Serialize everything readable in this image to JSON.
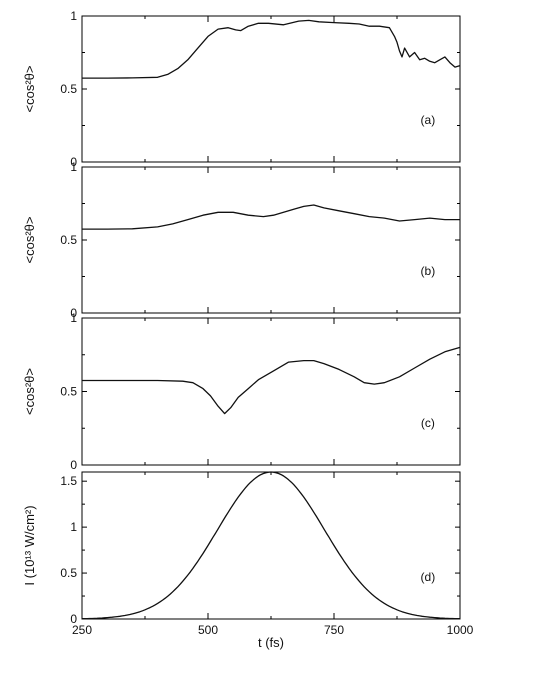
{
  "chart_data": [
    {
      "type": "line",
      "panel_label": "(a)",
      "ylabel": "<cos²θ>",
      "xlim": [
        250,
        1000
      ],
      "ylim": [
        0,
        1
      ],
      "ytick_labels": [
        "0",
        "0.5",
        "1"
      ],
      "ytick_values": [
        0,
        0.5,
        1
      ],
      "grid": false,
      "series": [
        {
          "x": [
            250,
            300,
            350,
            400,
            420,
            440,
            460,
            480,
            500,
            520,
            540,
            555,
            565,
            580,
            600,
            620,
            650,
            680,
            700,
            720,
            750,
            780,
            800,
            820,
            840,
            860,
            870,
            875,
            880,
            885,
            890,
            900,
            910,
            920,
            930,
            940,
            950,
            960,
            970,
            980,
            990,
            1000
          ],
          "y": [
            0.575,
            0.575,
            0.576,
            0.58,
            0.6,
            0.64,
            0.7,
            0.78,
            0.86,
            0.91,
            0.92,
            0.905,
            0.9,
            0.93,
            0.95,
            0.95,
            0.94,
            0.965,
            0.97,
            0.96,
            0.955,
            0.95,
            0.945,
            0.93,
            0.93,
            0.92,
            0.86,
            0.82,
            0.76,
            0.72,
            0.78,
            0.72,
            0.75,
            0.7,
            0.71,
            0.69,
            0.68,
            0.7,
            0.72,
            0.68,
            0.65,
            0.66
          ]
        }
      ]
    },
    {
      "type": "line",
      "panel_label": "(b)",
      "ylabel": "<cos²θ>",
      "xlim": [
        250,
        1000
      ],
      "ylim": [
        0,
        1
      ],
      "ytick_labels": [
        "0",
        "0.5",
        "1"
      ],
      "ytick_values": [
        0,
        0.5,
        1
      ],
      "grid": false,
      "series": [
        {
          "x": [
            250,
            300,
            350,
            400,
            430,
            460,
            490,
            520,
            550,
            580,
            610,
            630,
            650,
            670,
            690,
            710,
            730,
            760,
            790,
            820,
            850,
            880,
            910,
            940,
            970,
            1000
          ],
          "y": [
            0.575,
            0.575,
            0.577,
            0.59,
            0.61,
            0.64,
            0.67,
            0.69,
            0.69,
            0.67,
            0.66,
            0.67,
            0.69,
            0.71,
            0.73,
            0.74,
            0.72,
            0.7,
            0.68,
            0.66,
            0.65,
            0.63,
            0.64,
            0.65,
            0.64,
            0.64
          ]
        }
      ]
    },
    {
      "type": "line",
      "panel_label": "(c)",
      "ylabel": "<cos²θ>",
      "xlim": [
        250,
        1000
      ],
      "ylim": [
        0,
        1
      ],
      "ytick_labels": [
        "0",
        "0.5",
        "1"
      ],
      "ytick_values": [
        0,
        0.5,
        1
      ],
      "grid": false,
      "series": [
        {
          "x": [
            250,
            300,
            350,
            400,
            450,
            470,
            490,
            505,
            520,
            533,
            545,
            560,
            580,
            600,
            630,
            660,
            690,
            710,
            730,
            760,
            790,
            810,
            830,
            850,
            880,
            910,
            940,
            970,
            1000
          ],
          "y": [
            0.575,
            0.575,
            0.575,
            0.575,
            0.57,
            0.56,
            0.52,
            0.47,
            0.4,
            0.35,
            0.39,
            0.46,
            0.52,
            0.58,
            0.64,
            0.7,
            0.71,
            0.71,
            0.69,
            0.65,
            0.6,
            0.56,
            0.55,
            0.56,
            0.6,
            0.66,
            0.72,
            0.77,
            0.8
          ]
        }
      ]
    },
    {
      "type": "line",
      "panel_label": "(d)",
      "ylabel": "I (10¹³ W/cm²)",
      "xlabel": "t (fs)",
      "xlim": [
        250,
        1000
      ],
      "ylim": [
        0,
        1.6
      ],
      "xtick_labels": [
        "250",
        "500",
        "750",
        "1000"
      ],
      "xtick_values": [
        250,
        500,
        750,
        1000
      ],
      "ytick_labels": [
        "0",
        "0.5",
        "1",
        "1.5"
      ],
      "ytick_values": [
        0,
        0.5,
        1,
        1.5
      ],
      "grid": false,
      "series": [
        {
          "gaussian": {
            "center": 625,
            "peak": 1.6,
            "fwhm": 250
          }
        }
      ]
    }
  ]
}
